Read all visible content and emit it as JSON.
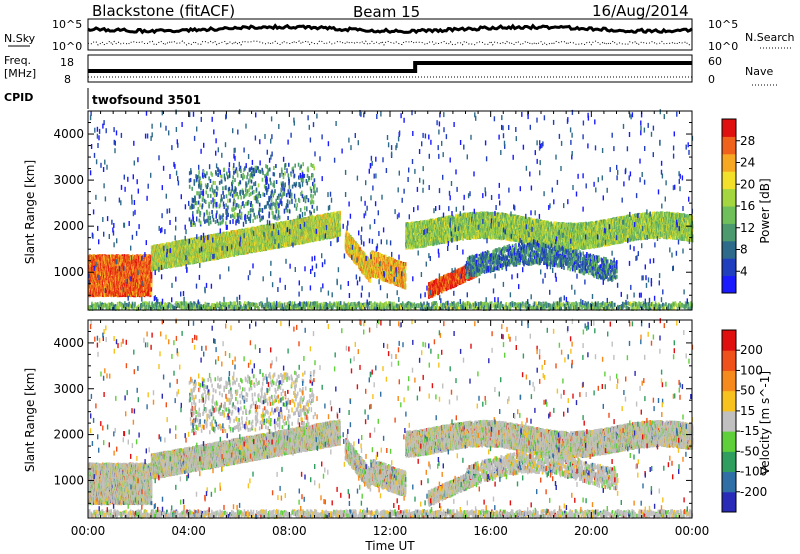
{
  "header": {
    "title": "Blackstone (fitACF)",
    "beam": "Beam 15",
    "date": "16/Aug/2014"
  },
  "summary_panels": {
    "nsky": {
      "label": "N.Sky",
      "ticks": [
        "10^5",
        "10^0"
      ]
    },
    "nsearch": {
      "label": "N.Search",
      "ticks": [
        "10^5",
        "10^0"
      ]
    },
    "freq": {
      "label": "Freq.",
      "unit": "[MHz]",
      "ticks": [
        "18",
        "8"
      ]
    },
    "nave": {
      "label": "Nave",
      "ticks": [
        "60",
        "0"
      ]
    },
    "cpid": {
      "label": "CPID",
      "value": "twofsound 3501"
    }
  },
  "chart_data": [
    {
      "type": "heatmap",
      "name": "power",
      "ylabel": "Slant Range [km]",
      "y_ticks": [
        1000,
        2000,
        3000,
        4000
      ],
      "ylim": [
        180,
        4500
      ],
      "x_ticks": [
        "00:00",
        "04:00",
        "08:00",
        "12:00",
        "16:00",
        "20:00",
        "00:00"
      ],
      "colorbar": {
        "label": "Power [dB]",
        "ticks": [
          "4",
          "8",
          "12",
          "16",
          "20",
          "24",
          "28"
        ],
        "colors": [
          "#1a1aff",
          "#1f3fbf",
          "#2e6b8a",
          "#4d9a6e",
          "#6fc05a",
          "#a4d640",
          "#f2e02a",
          "#f7a822",
          "#f0621c",
          "#e01010"
        ]
      }
    },
    {
      "type": "heatmap",
      "name": "velocity",
      "ylabel": "Slant Range [km]",
      "y_ticks": [
        1000,
        2000,
        3000,
        4000
      ],
      "ylim": [
        180,
        4500
      ],
      "x_ticks": [
        "00:00",
        "04:00",
        "08:00",
        "12:00",
        "16:00",
        "20:00",
        "00:00"
      ],
      "xlabel": "Time UT",
      "colorbar": {
        "label": "Velocity [m s^-1]",
        "ticks": [
          "200",
          "100",
          "50",
          "15",
          "-15",
          "-50",
          "-100",
          "-200"
        ],
        "colors": [
          "#2a2ab8",
          "#2f6fa6",
          "#2f9e5e",
          "#5fd03a",
          "#c0c0c0",
          "#f7c21e",
          "#f78a1c",
          "#f0501a",
          "#e01010"
        ]
      }
    }
  ]
}
